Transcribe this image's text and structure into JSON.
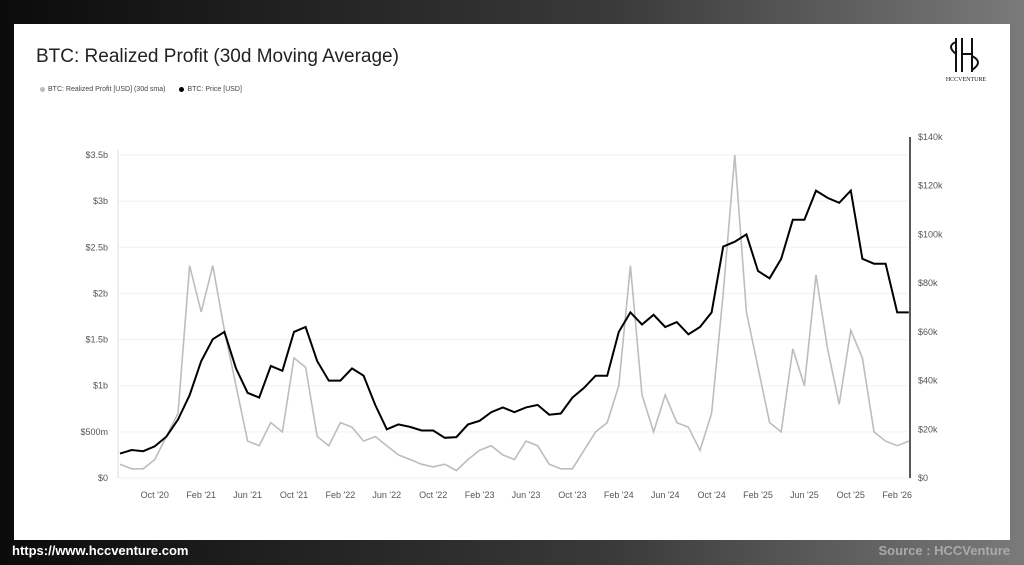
{
  "footer": {
    "url": "https://www.hccventure.com",
    "source": "Source : HCCVenture"
  },
  "logo_text": "HCCVENTURE",
  "chart_data": {
    "type": "line",
    "title": "BTC: Realized Profit (30d Moving Average)",
    "legend": [
      {
        "name": "BTC: Realized Profit [USD] (30d sma)",
        "color": "#bdbdbd"
      },
      {
        "name": "BTC: Price [USD]",
        "color": "#000000"
      }
    ],
    "legend_position": "top-left",
    "x_ticks": [
      "Oct '20",
      "Feb '21",
      "Jun '21",
      "Oct '21",
      "Feb '22",
      "Jun '22",
      "Oct '22",
      "Feb '23",
      "Jun '23",
      "Oct '23",
      "Feb '24",
      "Jun '24",
      "Oct '24",
      "Feb '25",
      "Jun '25",
      "Oct '25",
      "Feb '26"
    ],
    "x_tick_month_index": [
      3,
      7,
      11,
      15,
      19,
      23,
      27,
      31,
      35,
      39,
      43,
      47,
      51,
      55,
      59,
      63,
      67
    ],
    "left_axis": {
      "ticks": [
        "$0",
        "$500m",
        "$1b",
        "$1.5b",
        "$2b",
        "$2.5b",
        "$3b",
        "$3.5b"
      ],
      "range_billion_usd": [
        0,
        3.5
      ]
    },
    "right_axis": {
      "ticks": [
        "$0",
        "$20k",
        "$40k",
        "$60k",
        "$80k",
        "$100k",
        "$120k",
        "$140k"
      ],
      "range_thousand_usd": [
        0,
        140
      ]
    },
    "x_start": "2020-07",
    "series": [
      {
        "name": "BTC: Realized Profit [USD] (30d sma)",
        "unit": "billion USD",
        "axis": "left",
        "values": [
          0.15,
          0.1,
          0.1,
          0.2,
          0.45,
          0.7,
          2.3,
          1.8,
          2.3,
          1.6,
          1.0,
          0.4,
          0.35,
          0.6,
          0.5,
          1.3,
          1.2,
          0.45,
          0.35,
          0.6,
          0.55,
          0.4,
          0.45,
          0.35,
          0.25,
          0.2,
          0.15,
          0.12,
          0.15,
          0.08,
          0.2,
          0.3,
          0.35,
          0.25,
          0.2,
          0.4,
          0.35,
          0.15,
          0.1,
          0.1,
          0.3,
          0.5,
          0.6,
          1.0,
          2.3,
          0.9,
          0.5,
          0.9,
          0.6,
          0.55,
          0.3,
          0.7,
          2.0,
          3.5,
          1.8,
          1.2,
          0.6,
          0.5,
          1.4,
          1.0,
          2.2,
          1.4,
          0.8,
          1.6,
          1.3,
          0.5,
          0.4,
          0.35,
          0.4
        ]
      },
      {
        "name": "BTC: Price [USD]",
        "unit": "thousand USD",
        "axis": "right",
        "values": [
          10,
          11.5,
          11,
          13,
          17,
          24,
          34,
          48,
          57,
          60,
          45,
          35,
          33,
          46,
          44,
          60,
          62,
          48,
          40,
          40,
          45,
          42,
          30,
          20,
          22,
          21,
          19.5,
          19.5,
          16.5,
          16.8,
          22,
          23.5,
          27,
          29,
          27,
          29,
          30,
          26,
          26.5,
          33,
          37,
          42,
          42,
          60,
          68,
          63,
          67,
          62,
          64,
          59,
          62,
          68,
          95,
          97,
          100,
          85,
          82,
          90,
          106,
          106,
          118,
          115,
          113,
          118,
          90,
          88,
          88,
          68,
          68
        ]
      }
    ]
  }
}
